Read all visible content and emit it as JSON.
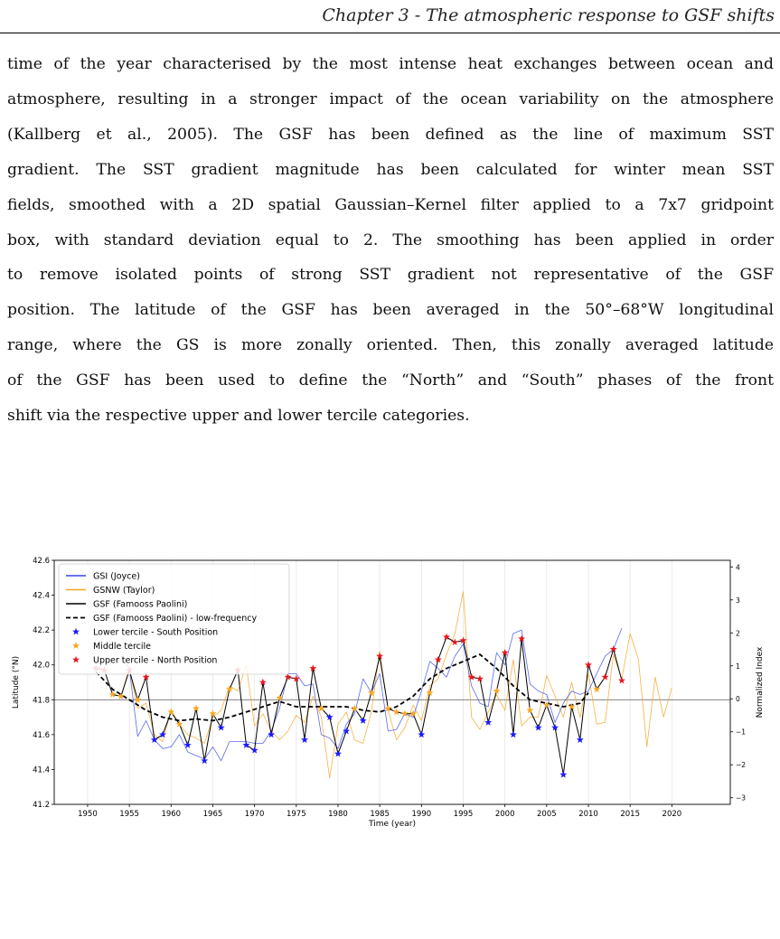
{
  "header": {
    "running_title": "Chapter 3 - The atmospheric response to GSF shifts"
  },
  "paragraph": {
    "lines": [
      "time of the year characterised by the most intense heat exchanges between ocean and",
      "atmosphere, resulting in a stronger impact of the ocean variability on the atmosphere",
      "(Kallberg et al., 2005). The GSF has been defined as the line of maximum SST",
      "gradient. The SST gradient magnitude has been calculated for winter mean SST",
      "fields, smoothed with a 2D spatial Gaussian–Kernel filter applied to a 7x7 gridpoint",
      "box, with standard deviation equal to 2. The smoothing has been applied in order",
      "to remove isolated points of strong SST gradient not representative of the GSF",
      "position. The latitude of the GSF has been averaged in the 50°–68°W longitudinal",
      "range, where the GS is more zonally oriented. Then, this zonally averaged latitude",
      "of the GSF has been used to define the “North” and “South” phases of the front",
      "shift via the respective upper and lower tercile categories."
    ]
  },
  "chart_data": {
    "type": "line",
    "title": "",
    "xlabel": "Time (year)",
    "ylabel": "Latitude (°N)",
    "y2label": "Normalized Index",
    "xlim": [
      1946,
      2027
    ],
    "ylim": [
      41.2,
      42.6
    ],
    "y2lim": [
      -3.2,
      4.2
    ],
    "xticks": [
      1950,
      1955,
      1960,
      1965,
      1970,
      1975,
      1980,
      1985,
      1990,
      1995,
      2000,
      2005,
      2010,
      2015,
      2020
    ],
    "yticks": [
      41.2,
      41.4,
      41.6,
      41.8,
      42.0,
      42.2,
      42.4,
      42.6
    ],
    "y2ticks": [
      -3,
      -2,
      -1,
      0,
      1,
      2,
      3,
      4
    ],
    "grid": "vertical",
    "legend_position": "top-left",
    "legend": [
      "GSI (Joyce)",
      "GSNW (Taylor)",
      "GSF (Famooss Paolini)",
      "GSF (Famooss Paolini) - low-frequency",
      "Lower tercile - South Position",
      "Middle tercile",
      "Upper tercile - North Position"
    ],
    "colors": {
      "gsi": "#3246e6",
      "gsnw": "#f5a623",
      "gsf": "#000000",
      "low": "#000000",
      "lower": "#1a1aff",
      "middle": "#f5a623",
      "upper": "#e8161b",
      "reference": "#555555"
    },
    "series": [
      {
        "name": "GSF (Famooss Paolini)",
        "x": [
          1951,
          1952,
          1953,
          1954,
          1955,
          1956,
          1957,
          1958,
          1959,
          1960,
          1961,
          1962,
          1963,
          1964,
          1965,
          1966,
          1967,
          1968,
          1969,
          1970,
          1971,
          1972,
          1973,
          1974,
          1975,
          1976,
          1977,
          1978,
          1979,
          1980,
          1981,
          1982,
          1983,
          1984,
          1985,
          1986,
          1987,
          1988,
          1989,
          1990,
          1991,
          1992,
          1993,
          1994,
          1995,
          1996,
          1997,
          1998,
          1999,
          2000,
          2001,
          2002,
          2003,
          2004,
          2005,
          2006,
          2007,
          2008,
          2009,
          2010,
          2011,
          2012,
          2013,
          2014
        ],
        "y": [
          41.98,
          41.97,
          41.83,
          41.82,
          41.97,
          41.8,
          41.93,
          41.57,
          41.6,
          41.73,
          41.66,
          41.54,
          41.75,
          41.45,
          41.72,
          41.64,
          41.86,
          41.97,
          41.54,
          41.51,
          41.9,
          41.6,
          41.81,
          41.93,
          41.92,
          41.57,
          41.98,
          41.75,
          41.7,
          41.49,
          41.62,
          41.75,
          41.68,
          41.84,
          42.05,
          41.75,
          41.73,
          41.72,
          41.72,
          41.6,
          41.84,
          42.03,
          42.16,
          42.13,
          42.14,
          41.93,
          41.92,
          41.67,
          41.85,
          42.07,
          41.6,
          42.15,
          41.74,
          41.64,
          41.77,
          41.64,
          41.37,
          41.76,
          41.57,
          42.0,
          41.86,
          41.93,
          42.09,
          41.91
        ]
      },
      {
        "name": "GSF (Famooss Paolini) - low-frequency",
        "x": [
          1951,
          1953,
          1955,
          1957,
          1959,
          1961,
          1963,
          1965,
          1967,
          1969,
          1971,
          1973,
          1975,
          1977,
          1979,
          1981,
          1983,
          1985,
          1987,
          1989,
          1991,
          1993,
          1995,
          1997,
          1999,
          2001,
          2003,
          2005,
          2007,
          2009,
          2010
        ],
        "y": [
          41.96,
          41.86,
          41.8,
          41.74,
          41.7,
          41.68,
          41.69,
          41.68,
          41.7,
          41.73,
          41.76,
          41.79,
          41.76,
          41.76,
          41.76,
          41.76,
          41.74,
          41.73,
          41.76,
          41.82,
          41.92,
          41.98,
          42.02,
          42.06,
          41.98,
          41.88,
          41.8,
          41.78,
          41.76,
          41.78,
          41.84
        ]
      },
      {
        "name": "GSI (Joyce)",
        "x": [
          1954,
          1955,
          1956,
          1957,
          1958,
          1959,
          1960,
          1961,
          1962,
          1963,
          1964,
          1965,
          1966,
          1967,
          1968,
          1969,
          1970,
          1971,
          1972,
          1973,
          1974,
          1975,
          1976,
          1977,
          1978,
          1979,
          1980,
          1981,
          1982,
          1983,
          1984,
          1985,
          1986,
          1987,
          1988,
          1989,
          1990,
          1991,
          1992,
          1993,
          1994,
          1995,
          1996,
          1997,
          1998,
          1999,
          2000,
          2001,
          2002,
          2003,
          2004,
          2005,
          2006,
          2007,
          2008,
          2009,
          2010,
          2011,
          2012,
          2013,
          2014
        ],
        "y": [
          42.05,
          41.98,
          41.59,
          41.68,
          41.57,
          41.52,
          41.53,
          41.6,
          41.5,
          41.48,
          41.46,
          41.53,
          41.45,
          41.56,
          41.56,
          41.56,
          41.55,
          41.55,
          41.62,
          41.75,
          41.95,
          41.95,
          41.88,
          41.89,
          41.6,
          41.58,
          41.52,
          41.66,
          41.72,
          41.92,
          41.84,
          41.95,
          41.62,
          41.63,
          41.72,
          41.7,
          41.85,
          42.02,
          41.98,
          41.93,
          42.05,
          42.12,
          41.88,
          41.78,
          41.76,
          42.07,
          42.0,
          42.18,
          42.2,
          41.89,
          41.85,
          41.83,
          41.67,
          41.78,
          41.85,
          41.83,
          41.85,
          41.95,
          42.05,
          42.09,
          42.21
        ]
      },
      {
        "name": "GSNW (Taylor)",
        "x": [
          1954,
          1955,
          1956,
          1957,
          1958,
          1959,
          1960,
          1961,
          1962,
          1963,
          1964,
          1965,
          1966,
          1967,
          1968,
          1969,
          1970,
          1971,
          1972,
          1973,
          1974,
          1975,
          1976,
          1977,
          1978,
          1979,
          1980,
          1981,
          1982,
          1983,
          1984,
          1985,
          1986,
          1987,
          1988,
          1989,
          1990,
          1991,
          1992,
          1993,
          1994,
          1995,
          1996,
          1997,
          1998,
          1999,
          2000,
          2001,
          2002,
          2003,
          2004,
          2005,
          2006,
          2007,
          2008,
          2009,
          2010,
          2011,
          2012,
          2013,
          2014,
          2015,
          2016,
          2017,
          2018,
          2019,
          2020
        ],
        "y": [
          41.82,
          41.98,
          41.75,
          41.78,
          41.6,
          41.56,
          41.74,
          41.66,
          41.6,
          41.58,
          41.55,
          41.7,
          41.74,
          41.88,
          41.85,
          42.0,
          41.65,
          41.72,
          41.62,
          41.57,
          41.62,
          41.71,
          41.67,
          41.82,
          41.7,
          41.35,
          41.66,
          41.73,
          41.57,
          41.55,
          41.73,
          42.08,
          41.74,
          41.57,
          41.64,
          41.77,
          41.68,
          41.88,
          41.92,
          42.06,
          42.18,
          42.42,
          41.7,
          41.63,
          41.73,
          41.83,
          41.74,
          42.03,
          41.65,
          41.7,
          41.7,
          41.94,
          41.82,
          41.7,
          41.9,
          41.7,
          41.95,
          41.66,
          41.67,
          42.06,
          41.92,
          42.18,
          42.03,
          41.53,
          41.93,
          41.7,
          41.87
        ]
      }
    ],
    "markers": {
      "lower": {
        "x": [
          1958,
          1959,
          1962,
          1964,
          1966,
          1969,
          1970,
          1972,
          1976,
          1979,
          1980,
          1981,
          1983,
          1990,
          1998,
          2001,
          2004,
          2006,
          2007,
          2009
        ],
        "y": [
          41.57,
          41.6,
          41.54,
          41.45,
          41.64,
          41.54,
          41.51,
          41.6,
          41.57,
          41.7,
          41.49,
          41.62,
          41.68,
          41.6,
          41.67,
          41.6,
          41.64,
          41.64,
          41.37,
          41.57
        ]
      },
      "middle": {
        "x": [
          1953,
          1954,
          1956,
          1960,
          1961,
          1963,
          1965,
          1967,
          1973,
          1978,
          1982,
          1984,
          1986,
          1987,
          1988,
          1989,
          1991,
          1999,
          2003,
          2005,
          2008,
          2011
        ],
        "y": [
          41.83,
          41.82,
          41.8,
          41.73,
          41.66,
          41.75,
          41.72,
          41.86,
          41.81,
          41.75,
          41.75,
          41.84,
          41.75,
          41.73,
          41.72,
          41.72,
          41.84,
          41.85,
          41.74,
          41.77,
          41.76,
          41.86
        ]
      },
      "upper": {
        "x": [
          1951,
          1952,
          1955,
          1957,
          1968,
          1971,
          1974,
          1975,
          1977,
          1985,
          1992,
          1993,
          1994,
          1995,
          1996,
          1997,
          2000,
          2002,
          2010,
          2012,
          2013,
          2014
        ],
        "y": [
          41.98,
          41.97,
          41.97,
          41.93,
          41.97,
          41.9,
          41.93,
          41.92,
          41.98,
          42.05,
          42.03,
          42.16,
          42.13,
          42.14,
          41.93,
          41.92,
          42.07,
          42.15,
          42.0,
          41.93,
          42.09,
          41.91
        ]
      }
    }
  }
}
